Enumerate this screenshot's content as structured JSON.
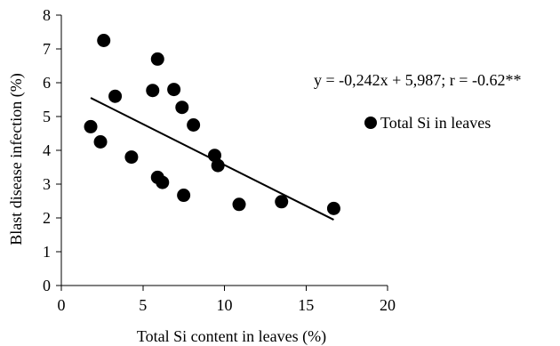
{
  "chart_data": {
    "type": "scatter",
    "title": "",
    "xlabel": "Total Si content in leaves (%)",
    "ylabel": "Blast disease infection (%)",
    "xlim": [
      0,
      20
    ],
    "ylim": [
      0,
      8
    ],
    "xticks": [
      "0",
      "5",
      "10",
      "15",
      "20"
    ],
    "yticks": [
      "0",
      "1",
      "2",
      "3",
      "4",
      "5",
      "6",
      "7",
      "8"
    ],
    "grid": false,
    "legend_position": "right",
    "series": [
      {
        "name": "Total Si in leaves",
        "color": "#000000",
        "marker": "circle",
        "points": [
          {
            "x": 1.8,
            "y": 4.7
          },
          {
            "x": 2.4,
            "y": 4.25
          },
          {
            "x": 2.6,
            "y": 7.25
          },
          {
            "x": 3.3,
            "y": 5.6
          },
          {
            "x": 4.3,
            "y": 3.8
          },
          {
            "x": 5.6,
            "y": 5.77
          },
          {
            "x": 5.9,
            "y": 6.7
          },
          {
            "x": 5.9,
            "y": 3.2
          },
          {
            "x": 6.2,
            "y": 3.05
          },
          {
            "x": 6.9,
            "y": 5.8
          },
          {
            "x": 7.4,
            "y": 5.27
          },
          {
            "x": 7.5,
            "y": 2.67
          },
          {
            "x": 8.1,
            "y": 4.75
          },
          {
            "x": 9.4,
            "y": 3.85
          },
          {
            "x": 9.6,
            "y": 3.55
          },
          {
            "x": 10.9,
            "y": 2.4
          },
          {
            "x": 13.5,
            "y": 2.48
          },
          {
            "x": 16.7,
            "y": 2.28
          }
        ]
      }
    ],
    "trendline": {
      "x_start": 1.8,
      "x_end": 16.7,
      "slope": -0.242,
      "intercept": 5.987,
      "color": "#000000"
    },
    "annotation": "y = -0,242x + 5,987; r = -0.62**",
    "legend": [
      {
        "label": "Total Si in leaves",
        "marker": "circle",
        "color": "#000000"
      }
    ]
  }
}
